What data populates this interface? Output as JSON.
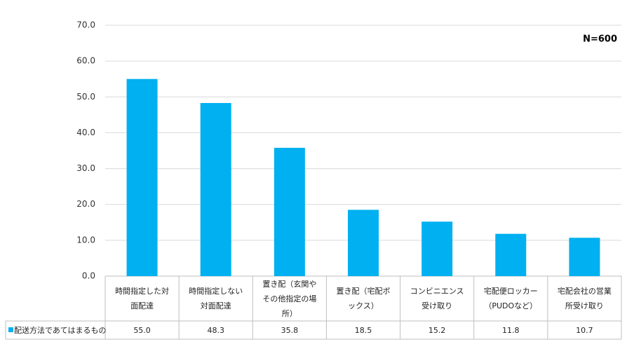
{
  "chart_data": {
    "type": "bar",
    "annotation": "N=600",
    "categories": [
      "時間指定した対面配達",
      "時間指定しない対面配達",
      "置き配（玄関やその他指定の場所）",
      "置き配（宅配ボックス）",
      "コンビニエンス受け取り",
      "宅配便ロッカー（PUDOなど）",
      "宅配会社の営業所受け取り"
    ],
    "series": [
      {
        "name": "配送方法であてはまるもの",
        "color": "#00b0f0",
        "values": [
          55.0,
          48.3,
          35.8,
          18.5,
          15.2,
          11.8,
          10.7
        ],
        "value_labels": [
          "55.0",
          "48.3",
          "35.8",
          "18.5",
          "15.2",
          "11.8",
          "10.7"
        ]
      }
    ],
    "ylim": [
      0,
      70
    ],
    "yticks": [
      {
        "value": 0,
        "label": "0.0"
      },
      {
        "value": 10,
        "label": "10.0"
      },
      {
        "value": 20,
        "label": "20.0"
      },
      {
        "value": 30,
        "label": "30.0"
      },
      {
        "value": 40,
        "label": "40.0"
      },
      {
        "value": 50,
        "label": "50.0"
      },
      {
        "value": 60,
        "label": "60.0"
      },
      {
        "value": 70,
        "label": "70.0"
      }
    ],
    "grid": true
  }
}
